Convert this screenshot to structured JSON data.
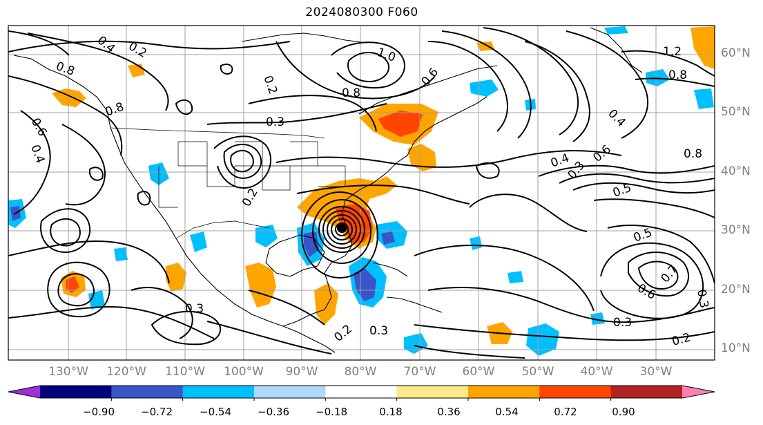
{
  "title": "2024080300 F060",
  "lat_labels": [
    "60°N",
    "50°N",
    "40°N",
    "30°N",
    "20°N",
    "10°N"
  ],
  "lon_labels": [
    "130°W",
    "120°W",
    "110°W",
    "100°W",
    "90°W",
    "80°W",
    "70°W",
    "60°W",
    "50°W",
    "40°W",
    "30°W"
  ],
  "colorbar": {
    "ticks": [
      "−0.90",
      "−0.72",
      "−0.54",
      "−0.36",
      "−0.18",
      "0.18",
      "0.36",
      "0.54",
      "0.72",
      "0.90"
    ],
    "colors": [
      "#9b30d6",
      "#000080",
      "#3a55c8",
      "#00bfff",
      "#add8f7",
      "#ffffff",
      "#ffe98a",
      "#ffa500",
      "#ff4500",
      "#b22222",
      "#ff80b0"
    ]
  },
  "contour_labels": [
    "0.4",
    "0.2",
    "0.8",
    "0.6",
    "0.4",
    "0.8",
    "0.3",
    "1.0",
    "0.2",
    "0.8",
    "0.6",
    "1.2",
    "0.8",
    "0.4",
    "0.8",
    "0.6",
    "0.4",
    "0.5",
    "0.3",
    "0.5",
    "0.7",
    "0.6",
    "0.3",
    "0.3",
    "0.2",
    "0.2",
    "0.3",
    "0.3",
    "0.2"
  ],
  "fill_colors": {
    "orange": "#ffa500",
    "red": "#ff4500",
    "lightblue": "#00bfff",
    "darkblue": "#3a55c8",
    "gold": "#ffe98a"
  }
}
